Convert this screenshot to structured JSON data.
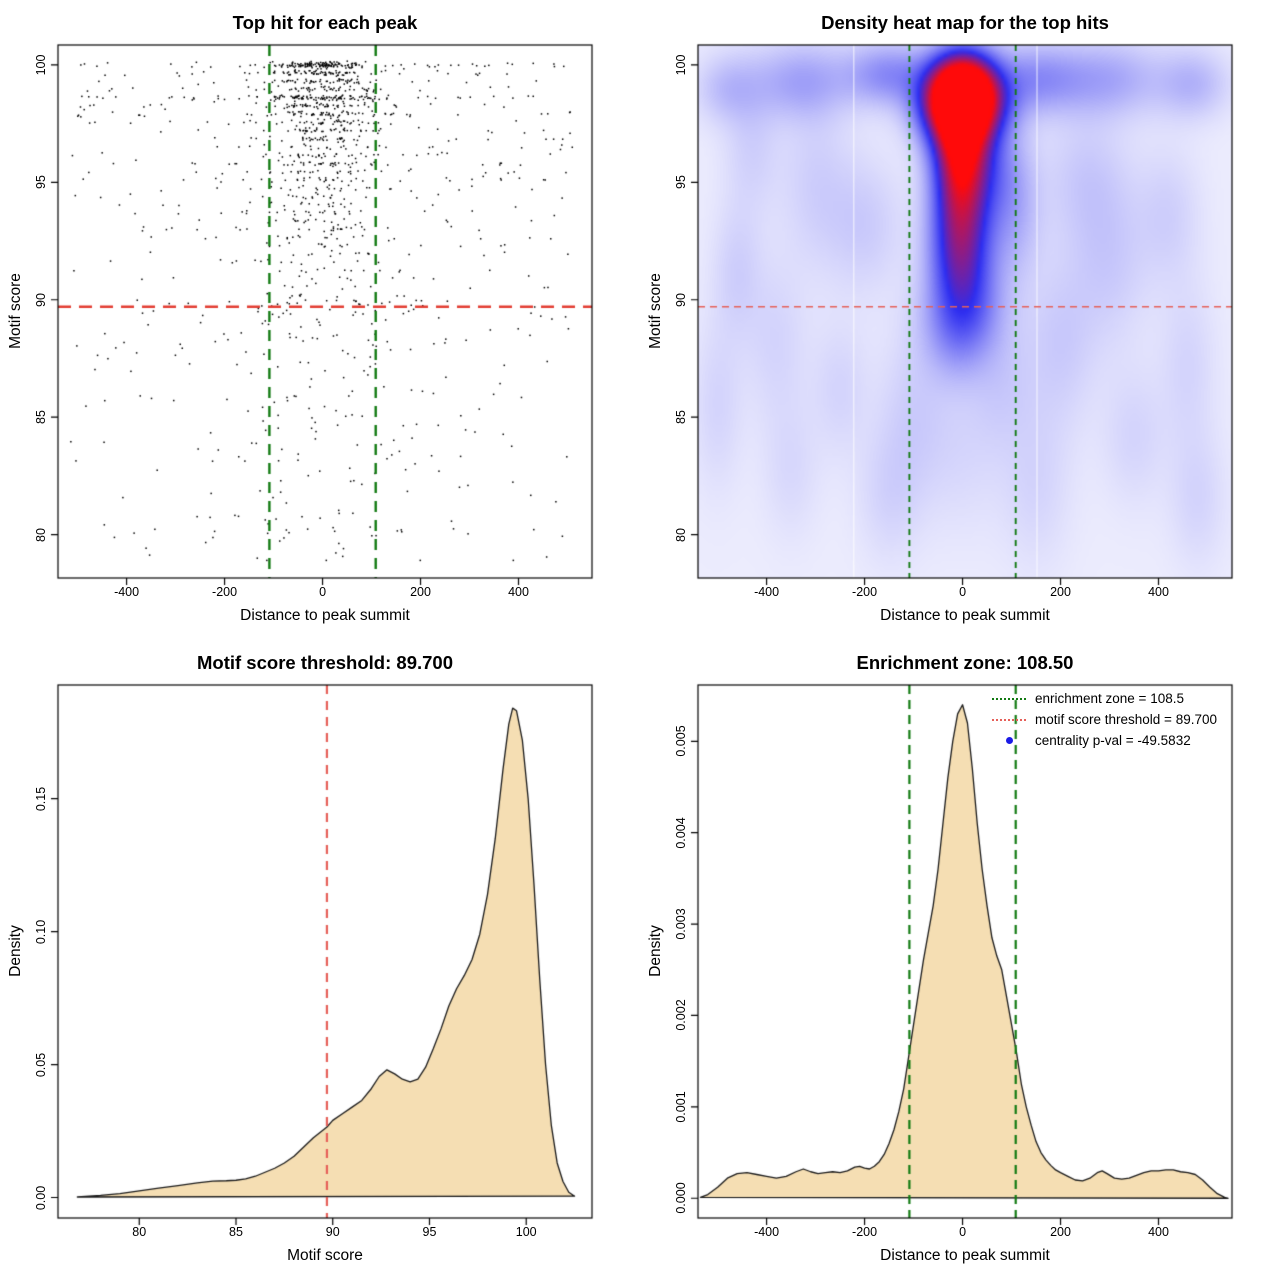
{
  "colors": {
    "background": "#ffffff",
    "box": "#000000",
    "point": "#000000",
    "red_dashed": "#e23d32",
    "red_dashed_light": "#e66059",
    "green_dashed": "#127a12",
    "wheat_fill": "#f5deb3",
    "curve_stroke": "#1a1a1a",
    "blue_dot": "#1a1ae6"
  },
  "thresholds": {
    "motif_score": 89.7,
    "motif_score_label": "89.700",
    "enrichment_zone": 108.5,
    "enrichment_zone_label": "108.50",
    "centrality_pval": "-49.5832"
  },
  "chart_data": [
    {
      "type": "scatter",
      "title": "Top hit for each peak",
      "xlabel": "Distance to peak summit",
      "ylabel": "Motif score",
      "xlim": [
        -540,
        550
      ],
      "ylim": [
        78.15,
        100.85
      ],
      "xticks": [
        -400,
        -200,
        0,
        200,
        400
      ],
      "xtick_labels": [
        "-400",
        "-200",
        "0",
        "200",
        "400"
      ],
      "yticks": [
        80,
        85,
        90,
        95,
        100
      ],
      "ytick_labels": [
        "80",
        "85",
        "90",
        "95",
        "100"
      ],
      "hline_red": 89.7,
      "vlines_green": [
        -108.5,
        108.5
      ],
      "points_spec": {
        "seed": 20240717,
        "score_jitter": 0.06,
        "x_range": [
          -515,
          512
        ],
        "mix": [
          [
            99.4,
            0.8,
            50
          ],
          [
            97,
            0.74,
            58
          ],
          [
            93,
            0.7,
            66
          ],
          [
            0,
            0.62,
            78
          ]
        ],
        "bands": [
          [
            100,
            170
          ],
          [
            99.65,
            85
          ],
          [
            99.3,
            60
          ],
          [
            98.95,
            55
          ],
          [
            98.6,
            130
          ],
          [
            98.25,
            65
          ],
          [
            97.9,
            70
          ],
          [
            97.55,
            50
          ],
          [
            97.2,
            48
          ],
          [
            96.85,
            40
          ],
          [
            96.5,
            28
          ],
          [
            96.15,
            38
          ],
          [
            95.8,
            45
          ],
          [
            95.45,
            30
          ],
          [
            95.1,
            36
          ],
          [
            94.75,
            26
          ],
          [
            94.4,
            22
          ],
          [
            94.05,
            20
          ],
          [
            93.7,
            26
          ],
          [
            93.35,
            20
          ],
          [
            93.0,
            26
          ],
          [
            92.65,
            20
          ],
          [
            92.3,
            16
          ],
          [
            91.95,
            16
          ],
          [
            91.6,
            13
          ],
          [
            91.25,
            13
          ],
          [
            90.9,
            11
          ],
          [
            90.55,
            10
          ],
          [
            90.2,
            9
          ]
        ],
        "low_n": 270,
        "low_center_frac": 0.42,
        "low_center_sd": 118,
        "low_score_power": 1.55,
        "low_score_span": 11.2
      }
    },
    {
      "type": "heatmap",
      "title": "Density heat map for the top hits",
      "xlabel": "Distance to peak summit",
      "ylabel": "Motif score",
      "xlim": [
        -540,
        550
      ],
      "ylim": [
        78.15,
        100.85
      ],
      "xticks": [
        -400,
        -200,
        0,
        200,
        400
      ],
      "xtick_labels": [
        "-400",
        "-200",
        "0",
        "200",
        "400"
      ],
      "yticks": [
        80,
        85,
        90,
        95,
        100
      ],
      "ytick_labels": [
        "80",
        "85",
        "90",
        "95",
        "100"
      ],
      "hline_red": 89.7,
      "vlines_green": [
        -108.5,
        108.5
      ],
      "base_value": 0.03,
      "white_seams_x": [
        -222,
        152
      ],
      "blobs": [
        [
          0,
          99.1,
          46,
          1.05,
          1.05
        ],
        [
          0,
          98.3,
          56,
          1.0,
          0.8
        ],
        [
          -4,
          97.3,
          42,
          1.1,
          0.55
        ],
        [
          -1,
          96.1,
          38,
          1.3,
          0.42
        ],
        [
          -6,
          94.9,
          36,
          1.5,
          0.34
        ],
        [
          0,
          93.5,
          42,
          1.6,
          0.3
        ],
        [
          -8,
          92.1,
          40,
          1.5,
          0.26
        ],
        [
          4,
          90.7,
          46,
          1.5,
          0.22
        ],
        [
          0,
          89.4,
          54,
          1.3,
          0.17
        ],
        [
          -10,
          88.1,
          46,
          1.3,
          0.11
        ],
        [
          -150,
          99.6,
          60,
          0.9,
          0.22
        ],
        [
          150,
          99.4,
          66,
          1.0,
          0.2
        ],
        [
          -330,
          99.3,
          70,
          1.1,
          0.16
        ],
        [
          300,
          99.4,
          76,
          1.1,
          0.15
        ],
        [
          470,
          99.2,
          50,
          1.0,
          0.12
        ],
        [
          -480,
          99.0,
          45,
          1.0,
          0.1
        ],
        [
          60,
          95.6,
          45,
          1.5,
          0.16
        ],
        [
          100,
          93.6,
          40,
          2.0,
          0.13
        ],
        [
          -200,
          93.2,
          55,
          2.0,
          0.07
        ],
        [
          250,
          95.2,
          60,
          2.0,
          0.07
        ],
        [
          -430,
          96.6,
          40,
          2.0,
          0.06
        ],
        [
          -300,
          95.1,
          50,
          2.5,
          0.06
        ],
        [
          -460,
          91.2,
          35,
          2.0,
          0.06
        ],
        [
          -380,
          88.2,
          45,
          2.5,
          0.05
        ],
        [
          -250,
          86.2,
          40,
          2.0,
          0.05
        ],
        [
          -100,
          85.2,
          50,
          2.5,
          0.06
        ],
        [
          80,
          86.6,
          45,
          2.0,
          0.06
        ],
        [
          200,
          88.2,
          50,
          2.5,
          0.07
        ],
        [
          300,
          91.6,
          55,
          2.5,
          0.07
        ],
        [
          420,
          93.6,
          45,
          2.0,
          0.06
        ],
        [
          460,
          87.2,
          40,
          2.5,
          0.05
        ],
        [
          350,
          84.2,
          45,
          2.0,
          0.05
        ],
        [
          150,
          82.2,
          50,
          2.5,
          0.05
        ],
        [
          -150,
          81.7,
          45,
          2.0,
          0.05
        ],
        [
          -350,
          82.7,
          40,
          2.0,
          0.04
        ],
        [
          0,
          83.7,
          60,
          2.5,
          0.04
        ],
        [
          480,
          81.5,
          40,
          2.0,
          0.05
        ],
        [
          -500,
          85.5,
          35,
          2.5,
          0.05
        ]
      ]
    },
    {
      "type": "area",
      "title": "Motif score threshold: 89.700",
      "xlabel": "Motif score",
      "ylabel": "Density",
      "xlim": [
        75.8,
        103.4
      ],
      "ylim": [
        -0.0077,
        0.1927
      ],
      "xticks": [
        80,
        85,
        90,
        95,
        100
      ],
      "xtick_labels": [
        "80",
        "85",
        "90",
        "95",
        "100"
      ],
      "yticks": [
        0,
        0.05,
        0.1,
        0.15
      ],
      "ytick_labels": [
        "0.00",
        "0.05",
        "0.10",
        "0.15"
      ],
      "vline_red": 89.7,
      "curve": [
        [
          76.8,
          0.0002
        ],
        [
          78,
          0.0008
        ],
        [
          79,
          0.0015
        ],
        [
          80,
          0.0025
        ],
        [
          81,
          0.0035
        ],
        [
          82,
          0.0045
        ],
        [
          83,
          0.0055
        ],
        [
          83.8,
          0.0062
        ],
        [
          84.5,
          0.0063
        ],
        [
          85,
          0.0065
        ],
        [
          85.5,
          0.007
        ],
        [
          86,
          0.008
        ],
        [
          86.5,
          0.0095
        ],
        [
          87,
          0.011
        ],
        [
          87.5,
          0.013
        ],
        [
          88,
          0.0155
        ],
        [
          88.5,
          0.019
        ],
        [
          89,
          0.0225
        ],
        [
          89.7,
          0.0265
        ],
        [
          90,
          0.029
        ],
        [
          90.5,
          0.0315
        ],
        [
          91,
          0.034
        ],
        [
          91.5,
          0.0365
        ],
        [
          92,
          0.041
        ],
        [
          92.4,
          0.0455
        ],
        [
          92.8,
          0.048
        ],
        [
          93.2,
          0.0465
        ],
        [
          93.6,
          0.0445
        ],
        [
          94,
          0.0435
        ],
        [
          94.4,
          0.0445
        ],
        [
          94.8,
          0.049
        ],
        [
          95.2,
          0.056
        ],
        [
          95.6,
          0.0635
        ],
        [
          96,
          0.072
        ],
        [
          96.4,
          0.0785
        ],
        [
          96.8,
          0.0835
        ],
        [
          97.2,
          0.0895
        ],
        [
          97.6,
          0.099
        ],
        [
          98,
          0.114
        ],
        [
          98.4,
          0.135
        ],
        [
          98.8,
          0.161
        ],
        [
          99.1,
          0.178
        ],
        [
          99.3,
          0.184
        ],
        [
          99.5,
          0.183
        ],
        [
          99.8,
          0.172
        ],
        [
          100.1,
          0.15
        ],
        [
          100.4,
          0.118
        ],
        [
          100.7,
          0.082
        ],
        [
          101,
          0.05
        ],
        [
          101.3,
          0.027
        ],
        [
          101.6,
          0.013
        ],
        [
          101.9,
          0.006
        ],
        [
          102.2,
          0.002
        ],
        [
          102.5,
          0.0005
        ]
      ]
    },
    {
      "type": "area",
      "title": "Enrichment zone: 108.50",
      "xlabel": "Distance to peak summit",
      "ylabel": "Density",
      "xlim": [
        -540,
        550
      ],
      "ylim": [
        -0.000216,
        0.005616
      ],
      "xticks": [
        -400,
        -200,
        0,
        200,
        400
      ],
      "xtick_labels": [
        "-400",
        "-200",
        "0",
        "200",
        "400"
      ],
      "yticks": [
        0,
        0.001,
        0.002,
        0.003,
        0.004,
        0.005
      ],
      "ytick_labels": [
        "0.000",
        "0.001",
        "0.002",
        "0.003",
        "0.004",
        "0.005"
      ],
      "vlines_green": [
        -108.5,
        108.5
      ],
      "curve": [
        [
          -535,
          1e-05
        ],
        [
          -520,
          4e-05
        ],
        [
          -500,
          0.00012
        ],
        [
          -480,
          0.00022
        ],
        [
          -460,
          0.00027
        ],
        [
          -440,
          0.00028
        ],
        [
          -420,
          0.00026
        ],
        [
          -400,
          0.00024
        ],
        [
          -380,
          0.00022
        ],
        [
          -360,
          0.00024
        ],
        [
          -340,
          0.00029
        ],
        [
          -325,
          0.00032
        ],
        [
          -310,
          0.00029
        ],
        [
          -295,
          0.00027
        ],
        [
          -280,
          0.00028
        ],
        [
          -265,
          0.00029
        ],
        [
          -250,
          0.00028
        ],
        [
          -235,
          0.0003
        ],
        [
          -220,
          0.00034
        ],
        [
          -210,
          0.00035
        ],
        [
          -200,
          0.00033
        ],
        [
          -190,
          0.00032
        ],
        [
          -180,
          0.00035
        ],
        [
          -170,
          0.0004
        ],
        [
          -160,
          0.00048
        ],
        [
          -150,
          0.0006
        ],
        [
          -140,
          0.00075
        ],
        [
          -130,
          0.00095
        ],
        [
          -120,
          0.0012
        ],
        [
          -110,
          0.00155
        ],
        [
          -100,
          0.0019
        ],
        [
          -90,
          0.00225
        ],
        [
          -80,
          0.0026
        ],
        [
          -70,
          0.0029
        ],
        [
          -60,
          0.0032
        ],
        [
          -50,
          0.0036
        ],
        [
          -40,
          0.0041
        ],
        [
          -30,
          0.0046
        ],
        [
          -20,
          0.005
        ],
        [
          -10,
          0.0053
        ],
        [
          0,
          0.0054
        ],
        [
          10,
          0.0052
        ],
        [
          20,
          0.0047
        ],
        [
          30,
          0.0041
        ],
        [
          40,
          0.0036
        ],
        [
          50,
          0.0032
        ],
        [
          60,
          0.00285
        ],
        [
          70,
          0.00265
        ],
        [
          80,
          0.0025
        ],
        [
          90,
          0.0022
        ],
        [
          100,
          0.0019
        ],
        [
          110,
          0.0016
        ],
        [
          120,
          0.00125
        ],
        [
          130,
          0.001
        ],
        [
          140,
          0.0008
        ],
        [
          150,
          0.00062
        ],
        [
          160,
          0.0005
        ],
        [
          170,
          0.00042
        ],
        [
          180,
          0.00036
        ],
        [
          190,
          0.00031
        ],
        [
          200,
          0.00028
        ],
        [
          215,
          0.00024
        ],
        [
          230,
          0.0002
        ],
        [
          245,
          0.00019
        ],
        [
          260,
          0.00022
        ],
        [
          275,
          0.00028
        ],
        [
          285,
          0.0003
        ],
        [
          295,
          0.00027
        ],
        [
          310,
          0.00022
        ],
        [
          325,
          0.00021
        ],
        [
          340,
          0.00022
        ],
        [
          355,
          0.00025
        ],
        [
          370,
          0.00028
        ],
        [
          385,
          0.0003
        ],
        [
          400,
          0.0003
        ],
        [
          415,
          0.00031
        ],
        [
          430,
          0.00031
        ],
        [
          445,
          0.00029
        ],
        [
          460,
          0.00028
        ],
        [
          475,
          0.00026
        ],
        [
          490,
          0.0002
        ],
        [
          505,
          0.00012
        ],
        [
          520,
          5e-05
        ],
        [
          535,
          1e-05
        ],
        [
          542,
          0
        ]
      ],
      "legend": {
        "items": [
          {
            "swatch": "dotted-green",
            "label": "enrichment zone = 108.5"
          },
          {
            "swatch": "dotted-red",
            "label": "motif score threshold = 89.700"
          },
          {
            "swatch": "blue-dot",
            "label": "centrality p-val = -49.5832"
          }
        ]
      }
    }
  ]
}
